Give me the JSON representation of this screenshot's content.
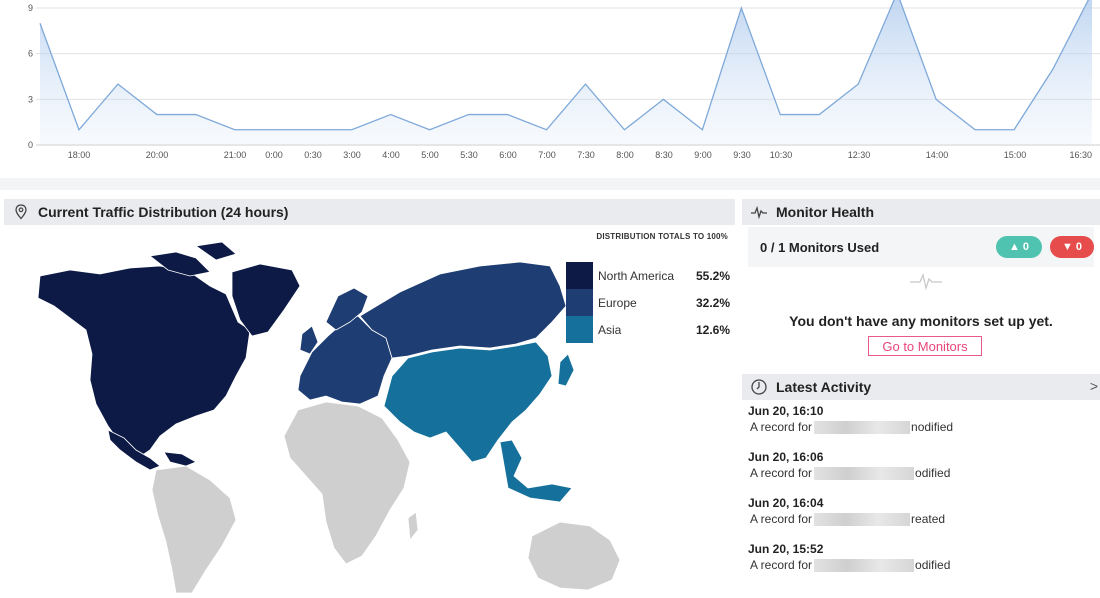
{
  "chart_data": {
    "type": "area",
    "title": "",
    "xlabel": "",
    "ylabel": "",
    "ylim": [
      0,
      9
    ],
    "yticks": [
      "0",
      "3",
      "6",
      "9"
    ],
    "x_labels": [
      "18:00",
      "20:00",
      "21:00",
      "0:00",
      "0:30",
      "3:00",
      "4:00",
      "5:00",
      "5:30",
      "6:00",
      "7:00",
      "7:30",
      "8:00",
      "8:30",
      "9:00",
      "9:30",
      "10:30",
      "12:30",
      "14:00",
      "15:00",
      "16:30"
    ],
    "values": [
      8,
      1,
      4,
      2,
      2,
      1,
      1,
      1,
      1,
      2,
      1,
      2,
      2,
      1,
      4,
      1,
      3,
      1,
      9,
      2,
      2,
      4,
      10,
      3,
      1,
      1,
      5,
      10
    ],
    "grid": true,
    "color": "#7fa9d9"
  },
  "traffic": {
    "title": "Current Traffic Distribution (24 hours)",
    "note": "DISTRIBUTION TOTALS TO 100%",
    "legend": [
      {
        "name": "North America",
        "value": "55.2%",
        "color": "#0c1a45"
      },
      {
        "name": "Europe",
        "value": "32.2%",
        "color": "#1e3d72"
      },
      {
        "name": "Asia",
        "value": "12.6%",
        "color": "#15719b"
      }
    ],
    "other_region_color": "#cfcfcf"
  },
  "monitor": {
    "title": "Monitor Health",
    "used": "0 / 1 Monitors Used",
    "up_count": "0",
    "down_count": "0",
    "empty_message": "You don't have any monitors set up yet.",
    "go_button": "Go to Monitors"
  },
  "activity": {
    "title": "Latest Activity",
    "chevron": ">",
    "items": [
      {
        "time": "Jun 20, 16:10",
        "prefix": "A  record for",
        "suffix": "nodified"
      },
      {
        "time": "Jun 20, 16:06",
        "prefix": "A  record for",
        "suffix": "odified"
      },
      {
        "time": "Jun 20, 16:04",
        "prefix": "A  record for",
        "suffix": "reated"
      },
      {
        "time": "Jun 20, 15:52",
        "prefix": "A  record for",
        "suffix": "odified"
      }
    ]
  }
}
